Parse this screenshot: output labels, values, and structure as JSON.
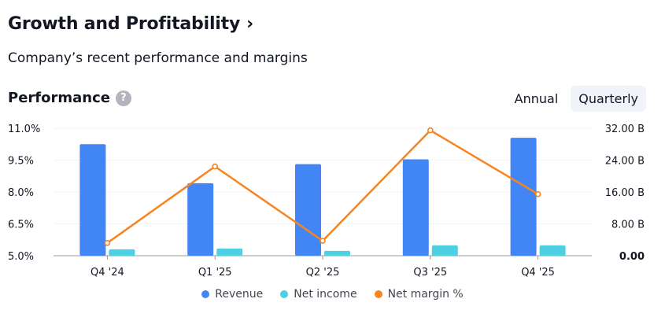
{
  "header": {
    "title": "Growth and Profitability",
    "chevron": "›",
    "subtitle": "Company’s recent performance and margins"
  },
  "section": {
    "title": "Performance",
    "help_icon_glyph": "?"
  },
  "toggle": {
    "annual": "Annual",
    "quarterly": "Quarterly",
    "selected": "Quarterly"
  },
  "colors": {
    "revenue": "#4285f4",
    "net_income": "#4dd0e1",
    "net_margin": "#f7841e"
  },
  "chart_data": {
    "type": "bar",
    "categories": [
      "Q4 '24",
      "Q1 '25",
      "Q2 '25",
      "Q3 '25",
      "Q4 '25"
    ],
    "series": [
      {
        "name": "Revenue",
        "axis": "right",
        "values": [
          28.0,
          18.2,
          23.0,
          24.2,
          29.6
        ]
      },
      {
        "name": "Net income",
        "axis": "right",
        "values": [
          1.6,
          1.8,
          1.2,
          2.6,
          2.6
        ]
      },
      {
        "name": "Net margin %",
        "axis": "left",
        "type": "line",
        "values": [
          5.6,
          9.2,
          5.7,
          10.9,
          7.9
        ]
      }
    ],
    "left_axis": {
      "ticks": [
        "11.0%",
        "9.5%",
        "8.0%",
        "6.5%",
        "5.0%"
      ],
      "range": [
        5.0,
        11.0
      ]
    },
    "right_axis": {
      "ticks": [
        "32.00 B",
        "24.00 B",
        "16.00 B",
        "8.00 B",
        "0.00"
      ],
      "range": [
        0,
        32
      ]
    },
    "legend": [
      "Revenue",
      "Net income",
      "Net margin %"
    ]
  }
}
